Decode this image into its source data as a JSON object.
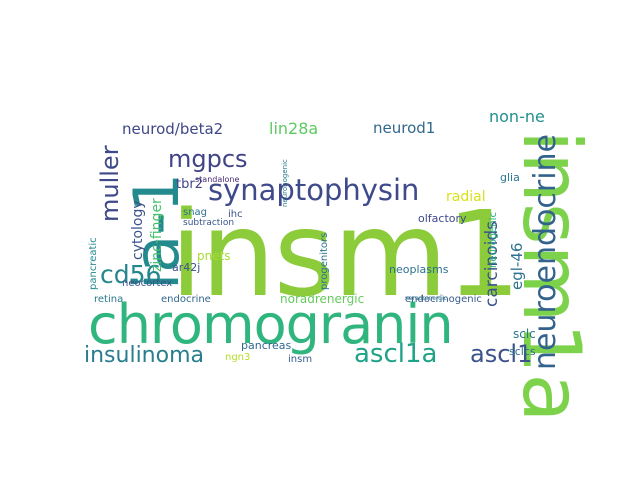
{
  "wordcloud": {
    "words": [
      {
        "text": "insm1",
        "color": "#8ccc3b"
      },
      {
        "text": "chromogranin",
        "color": "#30b57e"
      },
      {
        "text": "insm1a",
        "color": "#7dd24c"
      },
      {
        "text": "ia-1",
        "color": "#238a8d"
      },
      {
        "text": "synaptophysin",
        "color": "#3f4a8a"
      },
      {
        "text": "neuroendocrine",
        "color": "#33638d"
      },
      {
        "text": "insulinoma",
        "color": "#287d8e"
      },
      {
        "text": "ascl1a",
        "color": "#1fa287"
      },
      {
        "text": "ascl1",
        "color": "#3b528b"
      },
      {
        "text": "cd56",
        "color": "#24868e"
      },
      {
        "text": "mgpcs",
        "color": "#404387"
      },
      {
        "text": "muller",
        "color": "#3e4989"
      },
      {
        "text": "neurod/beta2",
        "color": "#3f4788"
      },
      {
        "text": "lin28a",
        "color": "#5ec962"
      },
      {
        "text": "neurod1",
        "color": "#31688e"
      },
      {
        "text": "non-ne",
        "color": "#218f8d"
      },
      {
        "text": "carcinoids",
        "color": "#3b528b"
      },
      {
        "text": "egl-46",
        "color": "#2c718e"
      },
      {
        "text": "zinc-finger",
        "color": "#48c16e"
      },
      {
        "text": "cytology",
        "color": "#3b528b"
      },
      {
        "text": "tbr2",
        "color": "#414487"
      },
      {
        "text": "radial",
        "color": "#d8e219"
      },
      {
        "text": "glia",
        "color": "#2a788e"
      },
      {
        "text": "sclc",
        "color": "#2a788e"
      },
      {
        "text": "sclcs",
        "color": "#2d708e"
      },
      {
        "text": "pancreas",
        "color": "#31688e"
      },
      {
        "text": "ngn3",
        "color": "#b5de2b"
      },
      {
        "text": "insm",
        "color": "#355e8d"
      },
      {
        "text": "neoplasms",
        "color": "#2c718e"
      },
      {
        "text": "noradrenergic",
        "color": "#65cb5e"
      },
      {
        "text": "endocrinogenic",
        "color": "#375a8c"
      },
      {
        "text": "pnets",
        "color": "#a8db34"
      },
      {
        "text": "endocrine",
        "color": "#31688e"
      },
      {
        "text": "neocortex",
        "color": "#3b528b"
      },
      {
        "text": "retina",
        "color": "#2a788e"
      },
      {
        "text": "ar42j",
        "color": "#3b528b"
      },
      {
        "text": "olfactory",
        "color": "#3e4989"
      },
      {
        "text": "progenitors",
        "color": "#2c728e"
      },
      {
        "text": "neurogenic",
        "color": "#22a884"
      },
      {
        "text": "pancreatic",
        "color": "#228b8d"
      },
      {
        "text": "snag",
        "color": "#2c728e"
      },
      {
        "text": "ihc",
        "color": "#3b528b"
      },
      {
        "text": "subtraction",
        "color": "#39568c"
      },
      {
        "text": "standalone",
        "color": "#472d7b"
      },
      {
        "text": "neuronogenic",
        "color": "#2a788e"
      },
      {
        "text": "noradrenergic",
        "color": "#2c728e"
      }
    ]
  }
}
